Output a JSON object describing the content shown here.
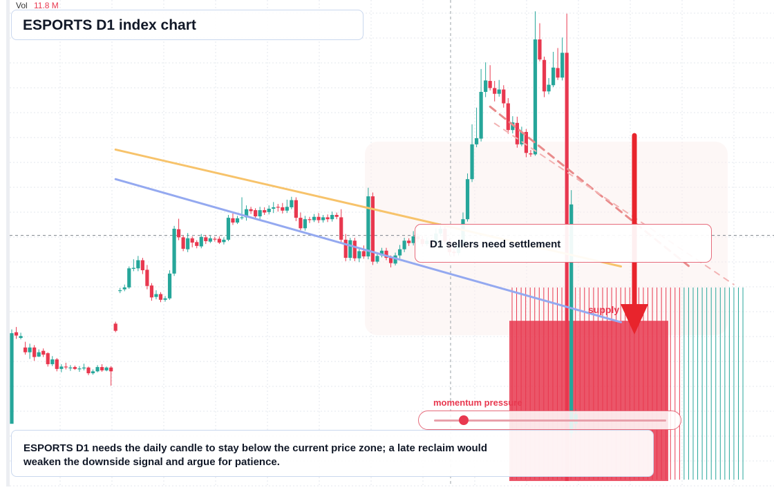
{
  "header": {
    "title": "ESPORTS D1 index chart"
  },
  "volume": {
    "label": "Vol",
    "value": "11.8 M"
  },
  "callout": {
    "text": "D1 sellers need settlement"
  },
  "supply_zone": {
    "label": "supply"
  },
  "momentum": {
    "label": "momentum pressure",
    "level": 0.07
  },
  "footer": {
    "text": "ESPORTS D1 needs the daily candle to stay below the current price zone; a late reclaim would weaken the downside signal and argue for patience."
  },
  "colors": {
    "up": "#26a69a",
    "down": "#e8384f",
    "ema_fast": "#f7c36b",
    "ema_slow": "#94a9f0",
    "arrow": "#e8242c"
  },
  "chart_data": {
    "type": "candlestick",
    "title": "ESPORTS D1 index chart",
    "ylim": [
      0,
      100
    ],
    "candles": [
      [
        12.0,
        31.0,
        31.8,
        30.5
      ],
      [
        31.2,
        30.5,
        32.3,
        29.8
      ],
      [
        30.0,
        30.4,
        31.1,
        29.7
      ],
      [
        28.0,
        27.0,
        29.2,
        26.5
      ],
      [
        27.0,
        28.0,
        28.8,
        25.6
      ],
      [
        28.0,
        26.0,
        28.5,
        25.2
      ],
      [
        26.1,
        27.0,
        27.6,
        26.0
      ],
      [
        27.3,
        26.5,
        27.8,
        26.0
      ],
      [
        26.8,
        24.5,
        27.0,
        24.0
      ],
      [
        24.5,
        25.5,
        26.2,
        24.1
      ],
      [
        25.5,
        23.5,
        25.8,
        23.0
      ],
      [
        23.5,
        24.0,
        24.5,
        22.8
      ],
      [
        24.0,
        23.9,
        24.8,
        23.4
      ],
      [
        23.7,
        23.8,
        24.3,
        23.1
      ],
      [
        23.9,
        23.5,
        24.2,
        23.3
      ],
      [
        23.5,
        23.6,
        24.1,
        22.9
      ],
      [
        23.6,
        23.8,
        24.6,
        23.2
      ],
      [
        23.8,
        22.6,
        24.0,
        22.2
      ],
      [
        22.6,
        23.0,
        23.4,
        22.3
      ],
      [
        23.0,
        23.9,
        24.3,
        22.8
      ],
      [
        23.9,
        23.2,
        24.5,
        22.9
      ],
      [
        23.2,
        23.8,
        24.0,
        23.0
      ],
      [
        23.8,
        23.0,
        24.1,
        20.0
      ],
      [
        33.0,
        31.5,
        33.4,
        31.2
      ],
      [
        40.0,
        40.0,
        40.5,
        39.4
      ],
      [
        40.2,
        40.6,
        41.2,
        39.8
      ],
      [
        40.6,
        44.6,
        45.0,
        40.3
      ],
      [
        44.5,
        44.7,
        46.5,
        44.0
      ],
      [
        44.6,
        46.3,
        47.2,
        44.0
      ],
      [
        46.3,
        44.2,
        46.8,
        43.4
      ],
      [
        44.3,
        40.9,
        45.3,
        40.2
      ],
      [
        41.0,
        38.5,
        41.5,
        37.8
      ],
      [
        38.6,
        39.2,
        40.0,
        38.1
      ],
      [
        39.2,
        38.0,
        39.6,
        37.5
      ],
      [
        38.0,
        38.3,
        38.8,
        37.6
      ],
      [
        38.3,
        43.5,
        44.2,
        38.0
      ],
      [
        43.5,
        52.9,
        53.5,
        43.0
      ],
      [
        52.8,
        51.1,
        55.0,
        50.5
      ],
      [
        51.1,
        48.7,
        51.5,
        48.2
      ],
      [
        48.6,
        50.9,
        52.0,
        48.0
      ],
      [
        50.9,
        50.0,
        51.3,
        49.0
      ],
      [
        50.1,
        49.3,
        50.5,
        48.8
      ],
      [
        49.2,
        51.2,
        51.8,
        48.8
      ],
      [
        51.1,
        50.3,
        51.6,
        49.7
      ],
      [
        50.2,
        50.9,
        51.4,
        49.9
      ],
      [
        50.8,
        50.7,
        51.2,
        50.2
      ],
      [
        50.8,
        50.0,
        51.3,
        49.7
      ],
      [
        50.1,
        50.6,
        51.1,
        49.6
      ],
      [
        50.6,
        55.2,
        55.8,
        50.3
      ],
      [
        55.1,
        54.2,
        56.1,
        53.7
      ],
      [
        54.2,
        55.1,
        55.6,
        53.9
      ],
      [
        55.3,
        55.3,
        59.5,
        54.8
      ],
      [
        55.3,
        57.0,
        57.8,
        54.6
      ],
      [
        57.0,
        56.6,
        57.5,
        56.0
      ],
      [
        56.8,
        55.5,
        57.2,
        54.9
      ],
      [
        55.5,
        56.8,
        57.5,
        54.7
      ],
      [
        56.8,
        56.3,
        57.4,
        55.8
      ],
      [
        56.4,
        57.1,
        57.8,
        55.9
      ],
      [
        57.1,
        57.4,
        58.5,
        56.2
      ],
      [
        57.5,
        57.4,
        58.1,
        56.5
      ],
      [
        57.4,
        56.7,
        58.3,
        56.1
      ],
      [
        56.7,
        57.5,
        59.0,
        56.2
      ],
      [
        57.4,
        58.9,
        59.6,
        57.0
      ],
      [
        58.9,
        55.2,
        59.5,
        54.5
      ],
      [
        55.2,
        53.0,
        56.3,
        52.6
      ],
      [
        53.0,
        54.9,
        55.6,
        52.5
      ],
      [
        54.9,
        54.8,
        55.4,
        54.1
      ],
      [
        54.7,
        55.4,
        56.0,
        54.3
      ],
      [
        55.4,
        54.7,
        56.2,
        54.1
      ],
      [
        54.7,
        55.3,
        55.8,
        54.2
      ],
      [
        55.3,
        54.9,
        55.9,
        54.3
      ],
      [
        54.9,
        55.8,
        56.5,
        54.4
      ],
      [
        55.8,
        55.4,
        56.3,
        54.9
      ],
      [
        55.3,
        50.6,
        57.0,
        49.8
      ],
      [
        50.6,
        46.8,
        51.8,
        46.1
      ],
      [
        46.8,
        50.5,
        51.0,
        46.2
      ],
      [
        50.4,
        46.7,
        51.0,
        46.1
      ],
      [
        46.7,
        48.2,
        48.8,
        45.9
      ],
      [
        48.2,
        47.1,
        49.4,
        46.6
      ],
      [
        47.1,
        59.7,
        61.5,
        46.5
      ],
      [
        59.7,
        46.0,
        60.5,
        45.3
      ],
      [
        46.0,
        47.2,
        47.8,
        45.6
      ],
      [
        47.3,
        48.3,
        48.9,
        46.9
      ],
      [
        48.3,
        46.8,
        48.9,
        46.3
      ],
      [
        46.8,
        45.7,
        47.3,
        44.8
      ],
      [
        45.6,
        47.3,
        47.9,
        45.2
      ],
      [
        47.3,
        48.6,
        49.5,
        46.7
      ],
      [
        48.6,
        50.4,
        51.0,
        48.0
      ],
      [
        50.4,
        49.9,
        50.9,
        49.3
      ],
      [
        49.9,
        51.3,
        52.4,
        49.4
      ],
      [
        51.3,
        50.7,
        51.9,
        50.1
      ],
      [
        50.7,
        49.7,
        51.4,
        49.2
      ],
      [
        49.7,
        50.4,
        51.1,
        49.3
      ],
      [
        50.3,
        49.7,
        51.0,
        49.0
      ],
      [
        49.6,
        51.9,
        53.0,
        49.1
      ],
      [
        51.9,
        52.9,
        54.0,
        51.3
      ],
      [
        52.9,
        50.2,
        53.5,
        49.6
      ],
      [
        50.2,
        48.0,
        50.8,
        47.3
      ],
      [
        48.1,
        47.8,
        48.7,
        47.1
      ],
      [
        47.8,
        49.6,
        50.5,
        47.3
      ],
      [
        49.6,
        54.9,
        56.3,
        49.2
      ],
      [
        54.9,
        63.3,
        64.5,
        54.4
      ],
      [
        63.3,
        70.6,
        74.8,
        62.7
      ],
      [
        70.6,
        71.9,
        78.3,
        70.0
      ],
      [
        71.8,
        81.6,
        86.4,
        71.2
      ],
      [
        81.6,
        84.0,
        87.8,
        80.5
      ],
      [
        83.9,
        82.4,
        87.2,
        81.9
      ],
      [
        82.4,
        81.2,
        83.9,
        79.6
      ],
      [
        81.2,
        82.1,
        84.1,
        80.6
      ],
      [
        82.1,
        79.2,
        83.0,
        78.3
      ],
      [
        79.2,
        73.6,
        80.3,
        72.8
      ],
      [
        73.6,
        75.2,
        76.5,
        72.9
      ],
      [
        75.1,
        70.6,
        76.4,
        69.9
      ],
      [
        70.6,
        73.2,
        74.3,
        70.2
      ],
      [
        73.2,
        68.8,
        73.8,
        67.9
      ],
      [
        68.7,
        68.5,
        69.4,
        68.0
      ],
      [
        68.5,
        92.6,
        98.5,
        68.2
      ],
      [
        92.6,
        88.4,
        96.0,
        88.0
      ],
      [
        88.3,
        81.7,
        89.0,
        80.5
      ],
      [
        81.7,
        83.1,
        84.5,
        81.1
      ],
      [
        83.0,
        86.7,
        90.0,
        82.6
      ],
      [
        86.6,
        84.6,
        90.8,
        84.1
      ],
      [
        84.6,
        89.8,
        93.0,
        84.0
      ],
      [
        89.8,
        0.0,
        98.0,
        0.0
      ],
      [
        10.0,
        58.0,
        61.0,
        9.0
      ],
      [
        12.0,
        14.0,
        15.0,
        10.0
      ]
    ],
    "supply_block": [
      0.0,
      0.0,
      33.6,
      33.6
    ],
    "ema_fast": [
      [
        23,
        69.5
      ],
      [
        135,
        45.0
      ]
    ],
    "ema_slow": [
      [
        23,
        63.3
      ],
      [
        135,
        33.3
      ]
    ],
    "trendline_dashed": [
      [
        106,
        78.5
      ],
      [
        150,
        45.1
      ]
    ],
    "trendline_light": [
      [
        107,
        75.0
      ],
      [
        160,
        41.2
      ]
    ],
    "current_price": 51.5
  }
}
